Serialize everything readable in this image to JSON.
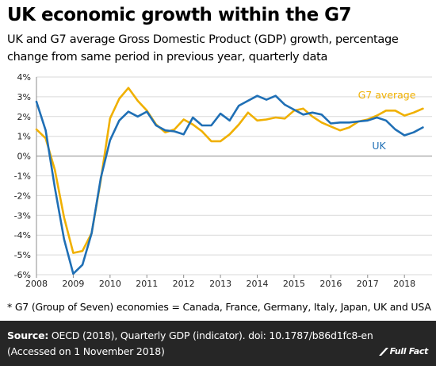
{
  "header": {
    "title": "UK economic growth within the G7",
    "subtitle": "UK and G7 average Gross Domestic Product (GDP) growth, percentage change from same period in previous year, quarterly data"
  },
  "note": "* G7 (Group of Seven) economies = Canada, France, Germany, Italy, Japan, UK and USA",
  "footer": {
    "source_label": "Source:",
    "source_text": "OECD (2018), Quarterly GDP (indicator). doi: 10.1787/b86d1fc8-en",
    "accessed": "(Accessed on 1 November 2018)",
    "logo_text": "Full Fact"
  },
  "chart_data": {
    "type": "line",
    "x_tick_labels": [
      "2008",
      "2009",
      "2010",
      "2011",
      "2012",
      "2013",
      "2014",
      "2015",
      "2016",
      "2017",
      "2018"
    ],
    "y_tick_labels": [
      "-6%",
      "-5%",
      "-4%",
      "-3%",
      "-2%",
      "-1%",
      "0%",
      "1%",
      "2%",
      "3%",
      "4%"
    ],
    "xlim": [
      2008,
      2018.75
    ],
    "ylim": [
      -6,
      4
    ],
    "grid": "horizontal",
    "legend_placement": "inline-labels",
    "x": [
      2008,
      2008.25,
      2008.5,
      2008.75,
      2009,
      2009.25,
      2009.5,
      2009.75,
      2010,
      2010.25,
      2010.5,
      2010.75,
      2011,
      2011.25,
      2011.5,
      2011.75,
      2012,
      2012.25,
      2012.5,
      2012.75,
      2013,
      2013.25,
      2013.5,
      2013.75,
      2014,
      2014.25,
      2014.5,
      2014.75,
      2015,
      2015.25,
      2015.5,
      2015.75,
      2016,
      2016.25,
      2016.5,
      2016.75,
      2017,
      2017.25,
      2017.5,
      2017.75,
      2018,
      2018.25,
      2018.5
    ],
    "series": [
      {
        "name": "G7 average",
        "color": "#f0b000",
        "values": [
          1.35,
          0.9,
          -0.7,
          -3.1,
          -4.9,
          -4.8,
          -3.9,
          -1.2,
          1.9,
          2.9,
          3.45,
          2.8,
          2.3,
          1.6,
          1.2,
          1.35,
          1.85,
          1.6,
          1.25,
          0.75,
          0.75,
          1.1,
          1.6,
          2.2,
          1.8,
          1.85,
          1.95,
          1.9,
          2.3,
          2.4,
          2.0,
          1.7,
          1.5,
          1.3,
          1.45,
          1.75,
          1.85,
          2.05,
          2.3,
          2.3,
          2.05,
          2.2,
          2.4
        ]
      },
      {
        "name": "UK",
        "color": "#1f6fb5",
        "values": [
          2.75,
          1.3,
          -1.6,
          -4.2,
          -5.95,
          -5.5,
          -3.9,
          -1.1,
          0.8,
          1.8,
          2.25,
          2.0,
          2.25,
          1.55,
          1.3,
          1.25,
          1.1,
          1.95,
          1.55,
          1.55,
          2.15,
          1.8,
          2.55,
          2.8,
          3.05,
          2.85,
          3.05,
          2.6,
          2.35,
          2.1,
          2.2,
          2.1,
          1.65,
          1.7,
          1.7,
          1.75,
          1.8,
          1.95,
          1.8,
          1.35,
          1.05,
          1.2,
          1.45
        ]
      }
    ]
  }
}
